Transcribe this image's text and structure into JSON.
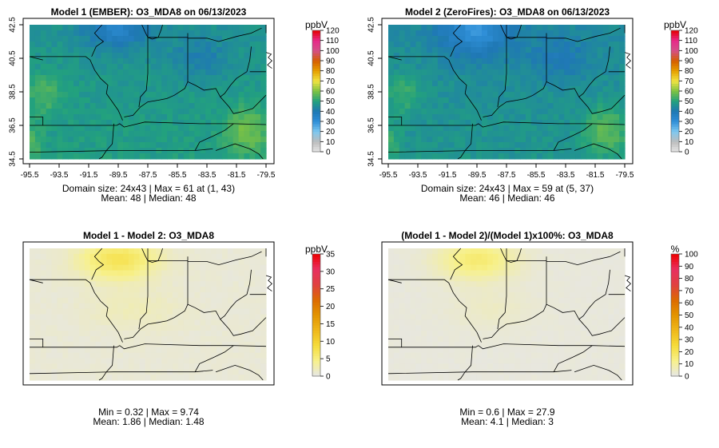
{
  "chart_data": [
    {
      "type": "heatmap",
      "title": "Model 1 (EMBER): O3_MDA8 on 06/13/2023",
      "legend_title": "ppbV",
      "legend_ticks": [
        "0",
        "10",
        "20",
        "30",
        "40",
        "50",
        "60",
        "70",
        "80",
        "90",
        "100",
        "110",
        "120"
      ],
      "legend_range": [
        0,
        120
      ],
      "palette": "ozone",
      "x_ticks": [
        "-95.5",
        "-93.5",
        "-91.5",
        "-89.5",
        "-87.5",
        "-85.5",
        "-83.5",
        "-81.5",
        "-79.5"
      ],
      "y_ticks": [
        "34.5",
        "36.5",
        "38.5",
        "40.5",
        "42.5"
      ],
      "x_range": [
        -95.5,
        -79.5
      ],
      "y_range": [
        34.5,
        42.5
      ],
      "grid_size": [
        24,
        43
      ],
      "stats_line1": "Domain size: 24x43 | Max = 61 at (1, 43)",
      "stats_line2": "Mean: 48 |  Median: 48",
      "field": "model1"
    },
    {
      "type": "heatmap",
      "title": "Model 2 (ZeroFires): O3_MDA8 on 06/13/2023",
      "legend_title": "ppbV",
      "legend_ticks": [
        "0",
        "10",
        "20",
        "30",
        "40",
        "50",
        "60",
        "70",
        "80",
        "90",
        "100",
        "110",
        "120"
      ],
      "legend_range": [
        0,
        120
      ],
      "palette": "ozone",
      "x_ticks": [
        "-95.5",
        "-93.5",
        "-91.5",
        "-89.5",
        "-87.5",
        "-85.5",
        "-83.5",
        "-81.5",
        "-79.5"
      ],
      "y_ticks": [
        "34.5",
        "36.5",
        "38.5",
        "40.5",
        "42.5"
      ],
      "x_range": [
        -95.5,
        -79.5
      ],
      "y_range": [
        34.5,
        42.5
      ],
      "grid_size": [
        24,
        43
      ],
      "stats_line1": "Domain size: 24x43 | Max = 59 at (5, 37)",
      "stats_line2": "Mean: 46 |  Median: 46",
      "field": "model2"
    },
    {
      "type": "heatmap",
      "title": "Model 1 - Model 2: O3_MDA8",
      "legend_title": "ppbV",
      "legend_ticks": [
        "0",
        "5",
        "10",
        "15",
        "20",
        "25",
        "30",
        "35"
      ],
      "legend_range": [
        0,
        35
      ],
      "palette": "diff",
      "x_ticks": [],
      "y_ticks": [],
      "x_range": [
        -95.5,
        -79.5
      ],
      "y_range": [
        34.5,
        42.5
      ],
      "grid_size": [
        24,
        43
      ],
      "stats_line1": "Min = 0.32 | Max = 9.74",
      "stats_line2": "Mean: 1.86 |  Median: 1.48",
      "field": "diff"
    },
    {
      "type": "heatmap",
      "title": "(Model 1 - Model 2)/(Model 1)x100%: O3_MDA8",
      "legend_title": "%",
      "legend_ticks": [
        "0",
        "10",
        "20",
        "30",
        "40",
        "50",
        "60",
        "70",
        "80",
        "90",
        "100"
      ],
      "legend_range": [
        0,
        100
      ],
      "palette": "diff",
      "x_ticks": [],
      "y_ticks": [],
      "x_range": [
        -95.5,
        -79.5
      ],
      "y_range": [
        34.5,
        42.5
      ],
      "grid_size": [
        24,
        43
      ],
      "stats_line1": "Min = 0.6 | Max = 27.9",
      "stats_line2": "Mean: 4.1 |  Median: 3",
      "field": "pct"
    }
  ],
  "palettes": {
    "ozone": [
      "#e6e6e6",
      "#bdbdbd",
      "#7ec8f0",
      "#2f8fd8",
      "#1f78b4",
      "#22a17e",
      "#7cc243",
      "#f0e442",
      "#e69f00",
      "#d55e00",
      "#d45087",
      "#e7298a",
      "#e60000"
    ],
    "diff": [
      "#e6e6e6",
      "#f7f18c",
      "#f5dc3b",
      "#efb81a",
      "#e39400",
      "#dc6a00",
      "#e04040",
      "#e83060",
      "#ee0000"
    ]
  }
}
